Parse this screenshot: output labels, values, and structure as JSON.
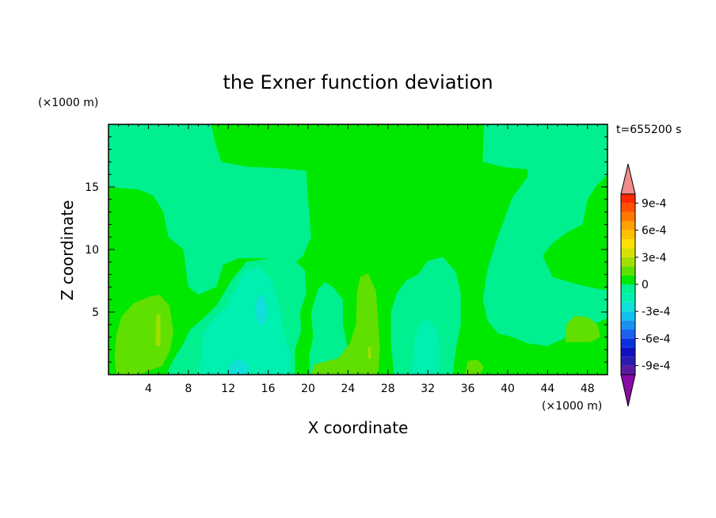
{
  "chart_data": {
    "type": "heatmap",
    "title": "the Exner function deviation",
    "xlabel": "X coordinate",
    "ylabel": "Z coordinate",
    "x_unit": "(×1000 m)",
    "y_unit": "(×1000 m)",
    "time_label": "t=655200 s",
    "xlim": [
      0,
      50
    ],
    "ylim": [
      0,
      20
    ],
    "x_ticks": [
      4,
      8,
      12,
      16,
      20,
      24,
      28,
      32,
      36,
      40,
      44,
      48
    ],
    "y_ticks": [
      5,
      10,
      15
    ],
    "colorbar": {
      "levels": [
        -0.0011,
        -0.001,
        -0.0009,
        -0.0008,
        -0.0007,
        -0.0006,
        -0.0005,
        -0.0004,
        -0.0003,
        -0.0002,
        -0.0001,
        0,
        0.0001,
        0.0002,
        0.0003,
        0.0004,
        0.0005,
        0.0006,
        0.0007,
        0.0008,
        0.0009,
        0.001,
        0.0011
      ],
      "colors": [
        "#8a0aa8",
        "#5a1aa0",
        "#2a1ab0",
        "#1010c0",
        "#0a30e0",
        "#1c60f0",
        "#1c90f0",
        "#10c0f0",
        "#10e0d8",
        "#00f0b0",
        "#00f090",
        "#00e800",
        "#60e000",
        "#a0e000",
        "#d8e000",
        "#ffe000",
        "#ffc000",
        "#ffa000",
        "#ff7800",
        "#ff5000",
        "#ff2800",
        "#f08c8c"
      ],
      "tick_labels": [
        "9e-4",
        "6e-4",
        "3e-4",
        "0",
        "-3e-4",
        "-6e-4",
        "-9e-4"
      ],
      "tick_values": [
        0.0009,
        0.0006,
        0.0003,
        0,
        -0.0003,
        -0.0006,
        -0.0009
      ]
    },
    "regions": [
      {
        "name": "upper-left-teal",
        "color": "#00f090",
        "points": [
          [
            0,
            20
          ],
          [
            10.3,
            20
          ],
          [
            10.7,
            18.5
          ],
          [
            11.3,
            17
          ],
          [
            14,
            16.6
          ],
          [
            17,
            16.5
          ],
          [
            19.8,
            16.3
          ],
          [
            20,
            14
          ],
          [
            20.3,
            11
          ],
          [
            19.5,
            9.5
          ],
          [
            18.5,
            8.8
          ],
          [
            16,
            9.3
          ],
          [
            13,
            9.3
          ],
          [
            11.5,
            8.8
          ],
          [
            10.8,
            7
          ],
          [
            9,
            6.4
          ],
          [
            8,
            7
          ],
          [
            7.5,
            10
          ],
          [
            6,
            11
          ],
          [
            5.5,
            13
          ],
          [
            4.5,
            14.3
          ],
          [
            3,
            14.8
          ],
          [
            0,
            15
          ]
        ]
      },
      {
        "name": "upper-right-teal",
        "color": "#00f090",
        "points": [
          [
            37.6,
            20
          ],
          [
            50,
            20
          ],
          [
            50,
            16
          ],
          [
            48.8,
            15
          ],
          [
            48,
            14
          ],
          [
            47.5,
            12
          ],
          [
            46,
            11.4
          ],
          [
            44.5,
            10.5
          ],
          [
            43.5,
            9.5
          ],
          [
            44.5,
            7.8
          ],
          [
            47.5,
            7.1
          ],
          [
            49.5,
            6.8
          ],
          [
            50,
            6.8
          ],
          [
            50,
            4.5
          ],
          [
            48.5,
            4
          ],
          [
            46,
            3
          ],
          [
            44,
            2.3
          ],
          [
            42,
            2.5
          ],
          [
            40.5,
            3
          ],
          [
            39,
            3.3
          ],
          [
            38,
            4.3
          ],
          [
            37.5,
            6
          ],
          [
            38,
            8.5
          ],
          [
            39,
            11
          ],
          [
            40.5,
            14.2
          ],
          [
            42,
            15.8
          ],
          [
            42,
            16.4
          ],
          [
            39.5,
            16.6
          ],
          [
            37.5,
            17
          ]
        ]
      },
      {
        "name": "upper-right-green-islet",
        "color": "#00e800",
        "points": [
          [
            44.3,
            10.3
          ],
          [
            46,
            11.2
          ],
          [
            47.5,
            11.6
          ],
          [
            48,
            10
          ],
          [
            47.8,
            8.4
          ],
          [
            46,
            8
          ],
          [
            44.6,
            8.2
          ],
          [
            44.2,
            9.2
          ]
        ]
      },
      {
        "name": "lower-left-teal",
        "color": "#00f090",
        "points": [
          [
            5.8,
            0
          ],
          [
            18.7,
            0
          ],
          [
            18.7,
            2
          ],
          [
            19.3,
            3.5
          ],
          [
            19.2,
            5
          ],
          [
            19.8,
            6.5
          ],
          [
            19.7,
            8.3
          ],
          [
            19,
            8.9
          ],
          [
            17.3,
            9.4
          ],
          [
            15.5,
            9.2
          ],
          [
            13.8,
            9
          ],
          [
            12.3,
            7.5
          ],
          [
            10.8,
            5.5
          ],
          [
            9.5,
            4.5
          ],
          [
            8.2,
            3.6
          ],
          [
            7.3,
            2.2
          ],
          [
            6.5,
            1.2
          ]
        ]
      },
      {
        "name": "center-teal",
        "color": "#00f090",
        "points": [
          [
            20.2,
            0
          ],
          [
            24.5,
            0
          ],
          [
            24,
            2
          ],
          [
            23.5,
            4
          ],
          [
            23.5,
            6
          ],
          [
            22.5,
            7
          ],
          [
            21.7,
            7.4
          ],
          [
            21,
            6.8
          ],
          [
            20.3,
            5
          ],
          [
            20.5,
            3
          ],
          [
            20.1,
            1.5
          ]
        ]
      },
      {
        "name": "mid-teal",
        "color": "#00f090",
        "points": [
          [
            28.6,
            0
          ],
          [
            34.5,
            0
          ],
          [
            34.8,
            2
          ],
          [
            35.3,
            4
          ],
          [
            35.3,
            6.5
          ],
          [
            34.8,
            8.2
          ],
          [
            33.5,
            9.4
          ],
          [
            32,
            9.1
          ],
          [
            31,
            8
          ],
          [
            29.8,
            7.5
          ],
          [
            28.9,
            6.5
          ],
          [
            28.3,
            5
          ],
          [
            28.3,
            2.5
          ]
        ]
      },
      {
        "name": "cyan-pocket-left",
        "color": "#00f0b0",
        "points": [
          [
            9,
            0
          ],
          [
            18,
            0
          ],
          [
            18.3,
            1.5
          ],
          [
            17.4,
            4
          ],
          [
            17,
            6
          ],
          [
            16.2,
            7.8
          ],
          [
            15,
            8.7
          ],
          [
            13.6,
            8.2
          ],
          [
            12.6,
            6.8
          ],
          [
            11.8,
            5.4
          ],
          [
            10.3,
            4.2
          ],
          [
            9.5,
            3.3
          ],
          [
            9.3,
            1.5
          ]
        ]
      },
      {
        "name": "cyan-core-left",
        "color": "#10e0d8",
        "points": [
          [
            15,
            4
          ],
          [
            15.6,
            4
          ],
          [
            16,
            5
          ],
          [
            15.5,
            6.5
          ],
          [
            14.8,
            6
          ],
          [
            14.7,
            5
          ]
        ]
      },
      {
        "name": "cyan-base-left",
        "color": "#10e0d8",
        "points": [
          [
            12,
            0
          ],
          [
            14,
            0
          ],
          [
            14,
            0.8
          ],
          [
            13,
            1.3
          ],
          [
            12.2,
            0.8
          ]
        ]
      },
      {
        "name": "cyan-pocket-mid",
        "color": "#00f0b0",
        "points": [
          [
            30.4,
            0
          ],
          [
            33,
            0
          ],
          [
            33.3,
            2
          ],
          [
            32.8,
            3.6
          ],
          [
            32,
            4.5
          ],
          [
            31,
            3.8
          ],
          [
            30.6,
            2.5
          ]
        ]
      },
      {
        "name": "lime-left",
        "color": "#60e000",
        "points": [
          [
            0.8,
            0
          ],
          [
            3,
            0
          ],
          [
            5.4,
            0.7
          ],
          [
            6.2,
            2
          ],
          [
            6.5,
            3.5
          ],
          [
            6.1,
            5.5
          ],
          [
            5.1,
            6.4
          ],
          [
            4,
            6.2
          ],
          [
            2.5,
            5.7
          ],
          [
            1.3,
            4.6
          ],
          [
            0.8,
            3.2
          ],
          [
            0.6,
            1.4
          ]
        ]
      },
      {
        "name": "lime-center-strip",
        "color": "#60e000",
        "points": [
          [
            20.3,
            0
          ],
          [
            27,
            0
          ],
          [
            27.2,
            2
          ],
          [
            27,
            4.5
          ],
          [
            26.8,
            6.7
          ],
          [
            26,
            8.1
          ],
          [
            25.2,
            7.8
          ],
          [
            24.9,
            6.5
          ],
          [
            24.8,
            4
          ],
          [
            24.2,
            2.5
          ],
          [
            23,
            1.3
          ],
          [
            21.5,
            1
          ],
          [
            20.6,
            0.8
          ]
        ]
      },
      {
        "name": "lime-right-foot",
        "color": "#60e000",
        "points": [
          [
            35.7,
            0
          ],
          [
            37.2,
            0
          ],
          [
            37.6,
            0.6
          ],
          [
            37,
            1.2
          ],
          [
            36,
            1.1
          ]
        ]
      },
      {
        "name": "lime-right",
        "color": "#60e000",
        "points": [
          [
            45.8,
            2.6
          ],
          [
            48.3,
            2.6
          ],
          [
            49.3,
            3
          ],
          [
            49,
            4
          ],
          [
            48,
            4.6
          ],
          [
            46.7,
            4.7
          ],
          [
            45.9,
            4
          ]
        ]
      },
      {
        "name": "yellow-speck-left",
        "color": "#a0e000",
        "points": [
          [
            4.7,
            2.3
          ],
          [
            5.2,
            2.3
          ],
          [
            5.2,
            4.8
          ],
          [
            4.8,
            4.8
          ]
        ]
      },
      {
        "name": "yellow-speck-center",
        "color": "#a0e000",
        "points": [
          [
            26,
            1.3
          ],
          [
            26.3,
            1.3
          ],
          [
            26.3,
            2.2
          ],
          [
            26,
            2.2
          ]
        ]
      }
    ]
  }
}
